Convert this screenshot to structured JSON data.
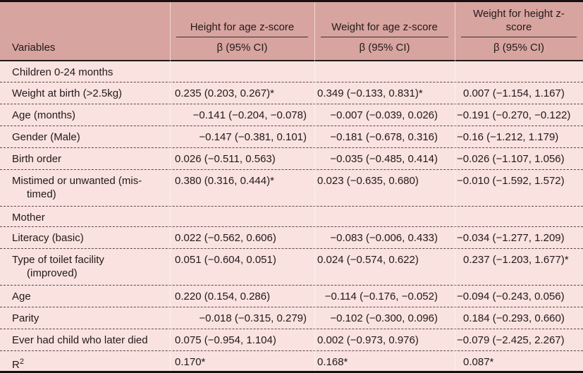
{
  "table": {
    "header": {
      "variables_label": "Variables",
      "beta_label": "β (95% CI)",
      "columns": [
        "Height for age z-score",
        "Weight for age z-score",
        "Weight for height z-\nscore"
      ]
    },
    "rows": [
      {
        "type": "section",
        "label": "Children 0-24 months"
      },
      {
        "type": "data",
        "label": "Weight at birth (>2.5kg)",
        "values": [
          "0.235 (0.203, 0.267)*",
          "0.349 (−0.133, 0.831)*",
          "0.007 (−1.154, 1.167)"
        ]
      },
      {
        "type": "data",
        "label": "Age (months)",
        "values": [
          "−0.141 (−0.204, −0.078)",
          "−0.007 (−0.039, 0.026)",
          "−0.191 (−0.270, −0.122)"
        ]
      },
      {
        "type": "data",
        "label": "Gender (Male)",
        "values": [
          "−0.147 (−0.381, 0.101)",
          "−0.181 (−0.678, 0.316)",
          "−0.16 (−1.212, 1.179)"
        ]
      },
      {
        "type": "data",
        "label": "Birth order",
        "values": [
          "0.026 (−0.511, 0.563)",
          "−0.035 (−0.485, 0.414)",
          "−0.026 (−1.107, 1.056)"
        ]
      },
      {
        "type": "data",
        "tall": true,
        "label": "Mistimed or unwanted (mis-\ntimed)",
        "values": [
          "0.380 (0.316, 0.444)*",
          "0.023 (−0.635, 0.680)",
          "−0.010 (−1.592, 1.572)"
        ]
      },
      {
        "type": "section",
        "label": "Mother"
      },
      {
        "type": "data",
        "label": "Literacy (basic)",
        "values": [
          "0.022 (−0.562, 0.606)",
          "−0.083 (−0.006, 0.433)",
          "−0.034 (−1.277, 1.209)"
        ]
      },
      {
        "type": "data",
        "tall": true,
        "label": "Type of toilet facility\n(improved)",
        "values": [
          "0.051 (−0.604, 0.051)",
          "0.024 (−0.574, 0.622)",
          "0.237 (−1.203, 1.677)*"
        ]
      },
      {
        "type": "data",
        "label": "Age",
        "values": [
          "0.220 (0.154, 0.286)",
          "−0.114 (−0.176, −0.052)",
          "−0.094 (−0.243, 0.056)"
        ]
      },
      {
        "type": "data",
        "label": "Parity",
        "values": [
          "−0.018 (−0.315, 0.279)",
          "−0.102 (−0.300, 0.096)",
          "0.184 (−0.293, 0.660)"
        ]
      },
      {
        "type": "data",
        "label": "Ever had child who later died",
        "values": [
          "0.075 (−0.954, 1.104)",
          "0.002 (−0.973, 0.976)",
          "−0.079 (−2.425, 2.267)"
        ]
      },
      {
        "type": "r2",
        "label": "R",
        "label_sup": "2",
        "values": [
          "0.170*",
          "0.168*",
          "0.087*"
        ]
      }
    ],
    "colors": {
      "header_bg": "#d8a49f",
      "body_bg": "#f9e2df",
      "rule_dark": "#171010",
      "row_divider": "#5d4744",
      "text": "#221a1a"
    }
  }
}
